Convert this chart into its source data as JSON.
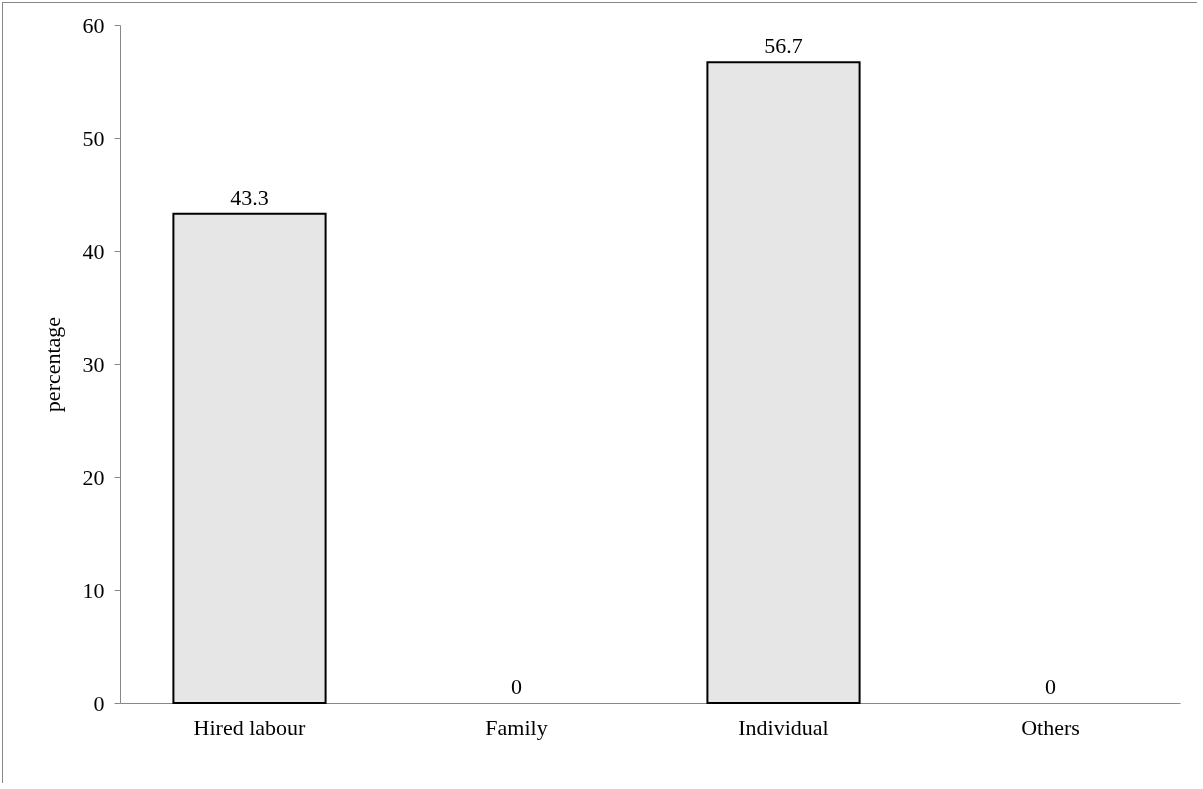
{
  "chart_data": {
    "type": "bar",
    "ylabel": "percentage",
    "categories": [
      "Hired labour",
      "Family",
      "Individual",
      "Others"
    ],
    "values": [
      43.3,
      0,
      56.7,
      0
    ],
    "color": "#e6e6e6",
    "ylim": [
      0,
      60
    ],
    "yticks": [
      0,
      10,
      20,
      30,
      40,
      50,
      60
    ],
    "grid": false,
    "data_labels": true
  }
}
